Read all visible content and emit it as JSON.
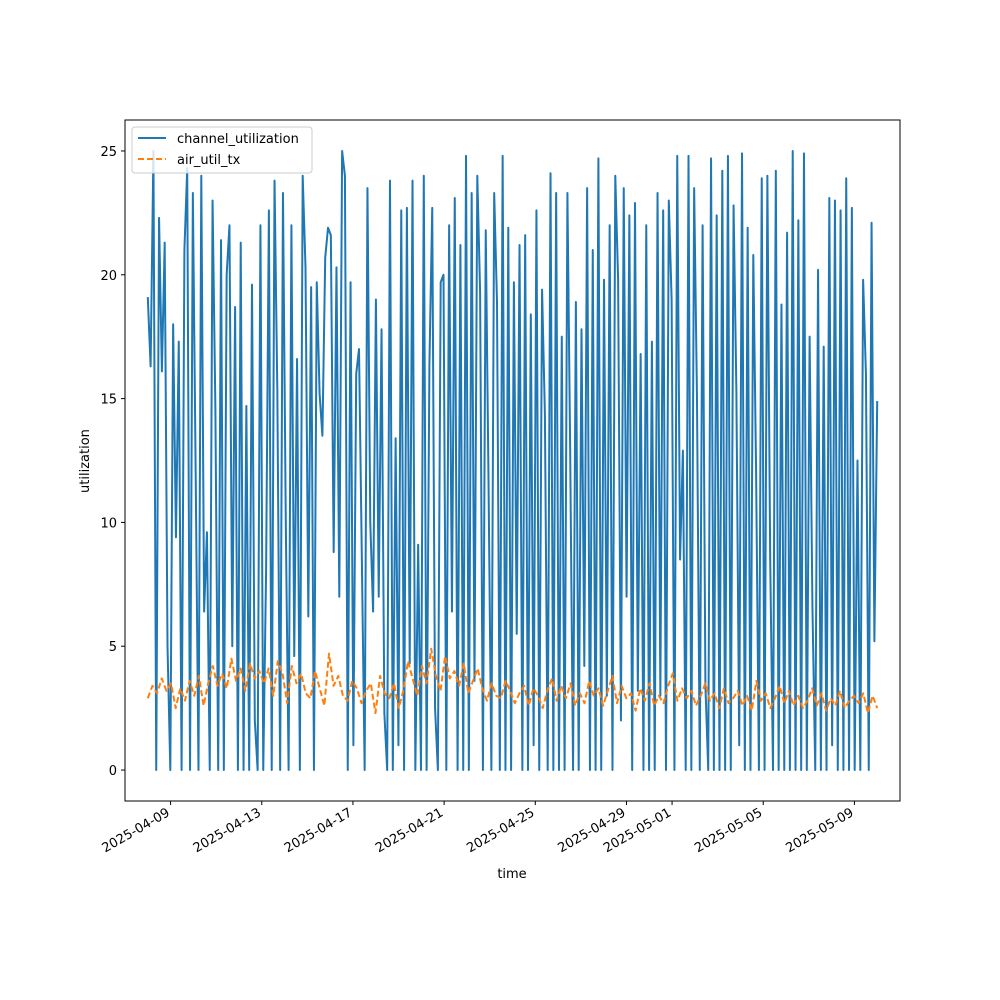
{
  "chart_data": {
    "type": "line",
    "xlabel": "time",
    "ylabel": "utilization",
    "x_start": "2025-04-08",
    "x_end": "2025-05-10",
    "xlim": [
      "2025-04-07",
      "2025-05-11"
    ],
    "ylim": [
      -1.25,
      26.25
    ],
    "y_ticks": [
      0,
      5,
      10,
      15,
      20,
      25
    ],
    "x_ticks": [
      "2025-04-09",
      "2025-04-13",
      "2025-04-17",
      "2025-04-21",
      "2025-04-25",
      "2025-04-29",
      "2025-05-01",
      "2025-05-05",
      "2025-05-09"
    ],
    "grid": false,
    "legend_position": "upper left",
    "series": [
      {
        "name": "channel_utilization",
        "color": "#1f77b4",
        "style": "solid",
        "values": [
          19.1,
          16.3,
          25.0,
          0.0,
          22.3,
          16.1,
          21.3,
          5.0,
          0.0,
          18.0,
          9.4,
          17.3,
          0.0,
          21.0,
          24.3,
          0.0,
          23.3,
          12.0,
          0.0,
          24.0,
          6.4,
          9.6,
          0.0,
          23.0,
          14.6,
          0.0,
          21.4,
          0.0,
          20.0,
          22.0,
          5.0,
          18.7,
          0.0,
          21.3,
          0.0,
          14.7,
          0.0,
          19.6,
          2.0,
          0.0,
          22.0,
          0.0,
          8.0,
          22.6,
          0.0,
          23.8,
          15.3,
          0.0,
          23.3,
          10.0,
          0.0,
          22.0,
          4.6,
          16.6,
          0.0,
          24.0,
          20.3,
          6.2,
          19.5,
          0.0,
          19.7,
          15.2,
          13.5,
          20.7,
          21.9,
          21.6,
          8.8,
          20.3,
          7.0,
          25.0,
          24.0,
          0.0,
          19.7,
          1.0,
          16.0,
          17.0,
          8.6,
          0.0,
          23.5,
          10.0,
          6.4,
          19.0,
          7.0,
          17.8,
          2.3,
          0.0,
          23.8,
          0.0,
          13.4,
          1.0,
          22.6,
          0.0,
          22.7,
          4.3,
          23.8,
          0.0,
          9.1,
          0.0,
          24.0,
          0.0,
          16.4,
          22.7,
          2.5,
          0.0,
          19.7,
          20.0,
          0.0,
          22.0,
          6.4,
          23.1,
          0.0,
          21.2,
          0.0,
          24.8,
          0.0,
          23.3,
          3.6,
          24.0,
          19.3,
          0.0,
          21.8,
          11.5,
          0.0,
          23.3,
          18.9,
          0.0,
          24.8,
          0.0,
          21.9,
          0.0,
          19.7,
          5.5,
          21.2,
          0.0,
          21.6,
          0.0,
          18.4,
          1.0,
          22.6,
          0.0,
          19.4,
          14.4,
          0.0,
          24.1,
          0.0,
          23.3,
          0.0,
          17.5,
          0.0,
          23.3,
          12.7,
          0.0,
          18.9,
          0.0,
          17.8,
          4.2,
          23.5,
          0.0,
          21.0,
          0.0,
          24.7,
          0.0,
          19.8,
          3.0,
          22.0,
          0.0,
          24.0,
          19.8,
          2.0,
          23.5,
          7.0,
          22.4,
          0.0,
          22.9,
          3.2,
          16.8,
          0.0,
          22.0,
          0.0,
          17.3,
          0.0,
          23.3,
          3.0,
          22.6,
          0.0,
          23.0,
          19.0,
          0.0,
          24.8,
          8.5,
          12.9,
          0.0,
          24.8,
          0.0,
          23.5,
          15.1,
          0.0,
          22.0,
          3.4,
          0.0,
          24.7,
          0.0,
          22.4,
          0.0,
          24.2,
          0.0,
          24.8,
          0.0,
          22.8,
          15.3,
          1.0,
          24.9,
          0.0,
          21.9,
          0.0,
          20.8,
          12.0,
          0.0,
          23.9,
          0.0,
          24.0,
          8.5,
          0.0,
          24.2,
          0.0,
          18.8,
          0.0,
          21.7,
          0.0,
          25.0,
          0.0,
          22.2,
          0.0,
          24.9,
          0.0,
          17.5,
          6.6,
          0.0,
          20.2,
          0.0,
          17.1,
          0.0,
          23.1,
          1.0,
          23.0,
          0.0,
          22.6,
          0.0,
          23.9,
          0.0,
          22.7,
          0.0,
          12.5,
          0.0,
          19.8,
          16.0,
          0.0,
          22.1,
          5.2,
          14.9
        ]
      },
      {
        "name": "air_util_tx",
        "color": "#ff7f0e",
        "style": "dashed",
        "values": [
          2.9,
          3.4,
          3.1,
          3.7,
          3.2,
          3.5,
          2.5,
          3.3,
          2.8,
          3.6,
          3.0,
          3.8,
          2.6,
          3.5,
          4.2,
          3.4,
          3.9,
          3.3,
          4.5,
          3.6,
          4.1,
          3.2,
          4.3,
          3.7,
          4.0,
          3.5,
          4.1,
          3.0,
          4.4,
          3.9,
          2.7,
          4.2,
          3.5,
          3.9,
          3.1,
          2.9,
          4.0,
          3.3,
          2.6,
          4.7,
          3.4,
          3.8,
          3.0,
          2.8,
          3.6,
          3.3,
          2.7,
          3.2,
          3.5,
          2.3,
          3.8,
          3.1,
          2.9,
          3.5,
          2.5,
          3.2,
          4.4,
          3.7,
          3.0,
          4.2,
          3.5,
          4.9,
          3.8,
          3.2,
          4.6,
          3.7,
          4.0,
          3.4,
          4.3,
          3.1,
          3.6,
          4.1,
          3.3,
          2.8,
          3.5,
          3.0,
          2.9,
          3.6,
          3.2,
          2.7,
          3.1,
          3.4,
          2.6,
          3.3,
          3.0,
          2.5,
          3.2,
          3.7,
          2.8,
          3.4,
          2.9,
          3.5,
          2.6,
          3.1,
          2.7,
          3.6,
          3.0,
          3.3,
          2.6,
          3.2,
          3.8,
          2.7,
          3.4,
          2.9,
          3.1,
          2.4,
          3.3,
          2.8,
          3.5,
          2.6,
          3.0,
          2.7,
          3.4,
          3.9,
          2.8,
          3.3,
          2.9,
          3.2,
          2.6,
          3.0,
          3.5,
          2.8,
          3.1,
          2.5,
          3.3,
          2.7,
          2.9,
          3.2,
          2.6,
          3.0,
          2.4,
          3.6,
          2.8,
          3.1,
          2.5,
          2.9,
          3.4,
          2.7,
          3.2,
          2.6,
          3.0,
          2.5,
          2.8,
          3.3,
          2.6,
          3.1,
          2.4,
          2.9,
          2.6,
          3.2,
          2.5,
          2.8,
          3.0,
          2.7,
          3.1,
          2.3,
          3.0,
          2.5
        ]
      }
    ]
  }
}
